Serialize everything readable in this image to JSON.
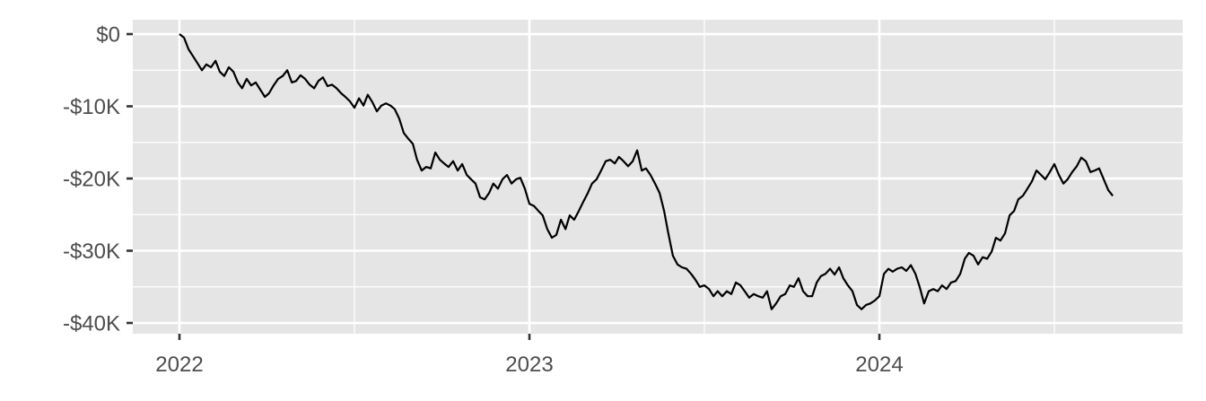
{
  "chart_data": {
    "type": "line",
    "title": "",
    "xlabel": "",
    "ylabel": "",
    "x_unit": "decimal year",
    "xlim": [
      2021.87,
      2024.87
    ],
    "ylim": [
      -41000,
      2000
    ],
    "grid": true,
    "background": "#e5e5e5",
    "line_color": "#000000",
    "x_ticks": [
      {
        "value": 2022,
        "label": "2022"
      },
      {
        "value": 2023,
        "label": "2023"
      },
      {
        "value": 2024,
        "label": "2024"
      }
    ],
    "y_ticks": [
      {
        "value": 0,
        "label": "$0"
      },
      {
        "value": -10000,
        "label": "-$10K"
      },
      {
        "value": -20000,
        "label": "-$20K"
      },
      {
        "value": -30000,
        "label": "-$30K"
      },
      {
        "value": -40000,
        "label": "-$40K"
      }
    ],
    "series": [
      {
        "x": [
          2022.0,
          2022.013,
          2022.026,
          2022.038,
          2022.051,
          2022.064,
          2022.077,
          2022.09,
          2022.103,
          2022.115,
          2022.128,
          2022.141,
          2022.154,
          2022.167,
          2022.179,
          2022.192,
          2022.205,
          2022.218,
          2022.231,
          2022.244,
          2022.256,
          2022.269,
          2022.282,
          2022.295,
          2022.308,
          2022.321,
          2022.333,
          2022.346,
          2022.359,
          2022.372,
          2022.385,
          2022.397,
          2022.41,
          2022.423,
          2022.436,
          2022.449,
          2022.462,
          2022.474,
          2022.487,
          2022.5,
          2022.513,
          2022.526,
          2022.538,
          2022.551,
          2022.564,
          2022.577,
          2022.59,
          2022.603,
          2022.615,
          2022.628,
          2022.641,
          2022.654,
          2022.667,
          2022.679,
          2022.692,
          2022.705,
          2022.718,
          2022.731,
          2022.744,
          2022.756,
          2022.769,
          2022.782,
          2022.795,
          2022.808,
          2022.821,
          2022.833,
          2022.846,
          2022.859,
          2022.872,
          2022.885,
          2022.897,
          2022.91,
          2022.923,
          2022.936,
          2022.949,
          2022.962,
          2022.974,
          2022.987,
          2023.0,
          2023.013,
          2023.026,
          2023.038,
          2023.051,
          2023.064,
          2023.077,
          2023.09,
          2023.103,
          2023.115,
          2023.128,
          2023.141,
          2023.154,
          2023.167,
          2023.179,
          2023.192,
          2023.205,
          2023.218,
          2023.231,
          2023.244,
          2023.256,
          2023.269,
          2023.282,
          2023.295,
          2023.308,
          2023.321,
          2023.333,
          2023.346,
          2023.359,
          2023.372,
          2023.385,
          2023.397,
          2023.41,
          2023.423,
          2023.436,
          2023.449,
          2023.462,
          2023.474,
          2023.487,
          2023.5,
          2023.513,
          2023.526,
          2023.538,
          2023.551,
          2023.564,
          2023.577,
          2023.59,
          2023.603,
          2023.615,
          2023.628,
          2023.641,
          2023.654,
          2023.667,
          2023.679,
          2023.692,
          2023.705,
          2023.718,
          2023.731,
          2023.744,
          2023.756,
          2023.769,
          2023.782,
          2023.795,
          2023.808,
          2023.821,
          2023.833,
          2023.846,
          2023.859,
          2023.872,
          2023.885,
          2023.897,
          2023.91,
          2023.923,
          2023.936,
          2023.949,
          2023.962,
          2023.974,
          2023.987,
          2024.0,
          2024.013,
          2024.026,
          2024.038,
          2024.051,
          2024.064,
          2024.077,
          2024.09,
          2024.103,
          2024.115,
          2024.128,
          2024.141,
          2024.154,
          2024.167,
          2024.179,
          2024.192,
          2024.205,
          2024.218,
          2024.231,
          2024.244,
          2024.256,
          2024.269,
          2024.282,
          2024.295,
          2024.308,
          2024.321,
          2024.333,
          2024.346,
          2024.359,
          2024.372,
          2024.385,
          2024.397,
          2024.41,
          2024.423,
          2024.436,
          2024.449,
          2024.462,
          2024.474,
          2024.487,
          2024.5,
          2024.513,
          2024.526,
          2024.538,
          2024.551,
          2024.564,
          2024.577,
          2024.59,
          2024.603,
          2024.615,
          2024.628,
          2024.641,
          2024.654,
          2024.667
        ],
        "y": [
          0,
          -500,
          -2100,
          -3000,
          -4000,
          -5000,
          -4200,
          -4600,
          -3700,
          -5200,
          -5800,
          -4600,
          -5200,
          -6700,
          -7500,
          -6200,
          -7100,
          -6700,
          -7700,
          -8700,
          -8200,
          -7100,
          -6200,
          -5800,
          -5000,
          -6700,
          -6500,
          -5700,
          -6200,
          -7000,
          -7500,
          -6500,
          -6000,
          -7200,
          -7000,
          -7500,
          -8200,
          -8700,
          -9300,
          -10200,
          -8900,
          -9900,
          -8400,
          -9400,
          -10700,
          -9900,
          -9600,
          -9900,
          -10400,
          -11700,
          -13700,
          -14500,
          -15200,
          -17400,
          -18900,
          -18400,
          -18600,
          -16400,
          -17400,
          -17900,
          -18400,
          -17600,
          -18900,
          -18000,
          -19500,
          -20100,
          -20700,
          -22600,
          -22900,
          -22000,
          -20700,
          -21400,
          -20100,
          -19500,
          -20700,
          -20100,
          -19900,
          -21400,
          -23500,
          -23800,
          -24500,
          -25100,
          -27000,
          -28200,
          -27800,
          -25700,
          -27000,
          -25100,
          -25700,
          -24500,
          -23200,
          -22000,
          -20700,
          -20100,
          -18900,
          -17600,
          -17400,
          -17900,
          -17000,
          -17600,
          -18300,
          -17600,
          -16100,
          -18900,
          -18600,
          -19500,
          -20700,
          -22000,
          -24500,
          -27600,
          -30700,
          -31900,
          -32300,
          -32500,
          -33200,
          -34000,
          -35000,
          -34800,
          -35300,
          -36300,
          -35600,
          -36300,
          -35600,
          -36000,
          -34400,
          -34800,
          -35600,
          -36500,
          -36000,
          -36300,
          -36500,
          -35600,
          -38100,
          -37300,
          -36300,
          -36000,
          -34800,
          -35000,
          -33800,
          -35600,
          -36300,
          -36300,
          -34400,
          -33500,
          -33200,
          -32500,
          -33300,
          -32300,
          -33800,
          -34800,
          -35600,
          -37500,
          -38100,
          -37500,
          -37300,
          -36900,
          -36300,
          -33200,
          -32500,
          -32900,
          -32500,
          -32300,
          -32800,
          -32000,
          -33200,
          -35000,
          -37300,
          -35600,
          -35300,
          -35600,
          -34800,
          -35300,
          -34400,
          -34200,
          -33200,
          -31100,
          -30300,
          -30700,
          -31900,
          -30900,
          -31100,
          -30100,
          -28200,
          -28600,
          -27600,
          -25100,
          -24500,
          -22900,
          -22400,
          -21400,
          -20400,
          -18900,
          -19500,
          -20100,
          -19100,
          -18000,
          -19500,
          -20700,
          -20100,
          -19100,
          -18300,
          -17100,
          -17600,
          -19100,
          -18900,
          -18600,
          -20100,
          -21600,
          -22400
        ]
      }
    ]
  }
}
